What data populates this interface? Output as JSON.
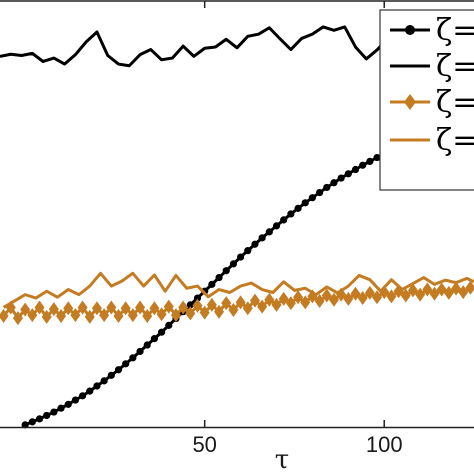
{
  "chart_data": {
    "type": "line",
    "xlabel": "τ",
    "ylabel": "",
    "xlim": [
      -7,
      125
    ],
    "ylim": [
      0,
      1
    ],
    "x_ticks": [
      50,
      100
    ],
    "x_tick_labels": [
      "50",
      "100"
    ],
    "grid": false,
    "legend_position": "top-right",
    "legend_entries": [
      "ζ=",
      "ζ=",
      "ζ=",
      "ζ="
    ],
    "series": [
      {
        "color": "#000000",
        "style": "line-with-circle-markers",
        "x": [
          0,
          2,
          4,
          6,
          8,
          10,
          12,
          14,
          16,
          18,
          20,
          22,
          24,
          26,
          28,
          30,
          32,
          34,
          36,
          38,
          40,
          42,
          44,
          46,
          48,
          50,
          52,
          54,
          56,
          58,
          60,
          62,
          64,
          66,
          68,
          70,
          72,
          74,
          76,
          78,
          80,
          82,
          84,
          86,
          88,
          90,
          92,
          94,
          96,
          98,
          100,
          102,
          104,
          106,
          108,
          110,
          112,
          114,
          116,
          118,
          120,
          122,
          124
        ],
        "y": [
          0.005,
          0.012,
          0.019,
          0.027,
          0.035,
          0.044,
          0.053,
          0.063,
          0.073,
          0.084,
          0.096,
          0.108,
          0.121,
          0.134,
          0.148,
          0.162,
          0.177,
          0.192,
          0.207,
          0.222,
          0.238,
          0.254,
          0.27,
          0.286,
          0.302,
          0.318,
          0.334,
          0.35,
          0.366,
          0.382,
          0.398,
          0.413,
          0.428,
          0.443,
          0.457,
          0.471,
          0.485,
          0.499,
          0.512,
          0.525,
          0.537,
          0.549,
          0.561,
          0.572,
          0.583,
          0.593,
          0.603,
          0.613,
          0.622,
          0.631,
          0.64,
          0.648,
          0.656,
          0.664,
          0.671,
          0.678,
          0.685,
          0.692,
          0.698,
          0.704,
          0.71,
          0.716,
          0.722
        ]
      },
      {
        "color": "#000000",
        "style": "line",
        "x": [
          -7,
          -4,
          -1,
          2,
          5,
          8,
          11,
          14,
          17,
          20,
          23,
          26,
          29,
          32,
          35,
          38,
          41,
          44,
          47,
          50,
          53,
          56,
          59,
          62,
          65,
          68,
          71,
          74,
          77,
          80,
          83,
          86,
          89,
          92,
          95,
          98,
          101
        ],
        "y": [
          0.868,
          0.873,
          0.87,
          0.875,
          0.856,
          0.864,
          0.85,
          0.872,
          0.902,
          0.925,
          0.87,
          0.85,
          0.846,
          0.872,
          0.884,
          0.86,
          0.864,
          0.892,
          0.868,
          0.887,
          0.89,
          0.908,
          0.888,
          0.915,
          0.92,
          0.935,
          0.909,
          0.884,
          0.91,
          0.92,
          0.937,
          0.929,
          0.937,
          0.89,
          0.862,
          0.883,
          0.91
        ]
      },
      {
        "color": "#c47c22",
        "style": "line-with-diamond-markers",
        "x": [
          -6,
          -4,
          -2,
          0,
          2,
          4,
          6,
          8,
          10,
          12,
          14,
          16,
          18,
          20,
          22,
          24,
          26,
          28,
          30,
          32,
          34,
          36,
          38,
          40,
          42,
          44,
          46,
          48,
          50,
          52,
          54,
          56,
          58,
          60,
          62,
          64,
          66,
          68,
          70,
          72,
          74,
          76,
          78,
          80,
          82,
          84,
          86,
          88,
          90,
          92,
          94,
          96,
          98,
          100,
          102,
          104,
          106,
          108,
          110,
          112,
          114,
          116,
          118,
          120,
          122,
          124
        ],
        "y": [
          0.26,
          0.28,
          0.255,
          0.275,
          0.262,
          0.28,
          0.258,
          0.276,
          0.26,
          0.278,
          0.262,
          0.28,
          0.258,
          0.278,
          0.262,
          0.28,
          0.26,
          0.278,
          0.262,
          0.28,
          0.26,
          0.278,
          0.264,
          0.282,
          0.262,
          0.28,
          0.266,
          0.284,
          0.268,
          0.286,
          0.27,
          0.29,
          0.274,
          0.292,
          0.278,
          0.296,
          0.282,
          0.298,
          0.286,
          0.3,
          0.29,
          0.304,
          0.292,
          0.306,
          0.295,
          0.308,
          0.298,
          0.31,
          0.3,
          0.312,
          0.302,
          0.314,
          0.304,
          0.316,
          0.306,
          0.318,
          0.308,
          0.32,
          0.31,
          0.322,
          0.312,
          0.322,
          0.314,
          0.324,
          0.316,
          0.326
        ]
      },
      {
        "color": "#c47c22",
        "style": "line",
        "x": [
          -6,
          -3,
          0,
          3,
          6,
          9,
          12,
          15,
          18,
          21,
          24,
          27,
          30,
          33,
          36,
          39,
          42,
          45,
          48,
          51,
          54,
          57,
          60,
          63,
          66,
          69,
          72,
          75,
          78,
          81,
          84,
          87,
          90,
          93,
          96,
          99,
          102,
          105,
          108,
          111,
          114,
          117,
          120,
          123,
          125
        ],
        "y": [
          0.28,
          0.295,
          0.31,
          0.302,
          0.318,
          0.304,
          0.322,
          0.31,
          0.33,
          0.36,
          0.33,
          0.342,
          0.36,
          0.33,
          0.356,
          0.318,
          0.355,
          0.325,
          0.33,
          0.305,
          0.322,
          0.315,
          0.33,
          0.337,
          0.322,
          0.315,
          0.34,
          0.32,
          0.325,
          0.31,
          0.328,
          0.314,
          0.33,
          0.355,
          0.345,
          0.318,
          0.345,
          0.322,
          0.336,
          0.35,
          0.334,
          0.344,
          0.338,
          0.348,
          0.34
        ]
      }
    ]
  }
}
